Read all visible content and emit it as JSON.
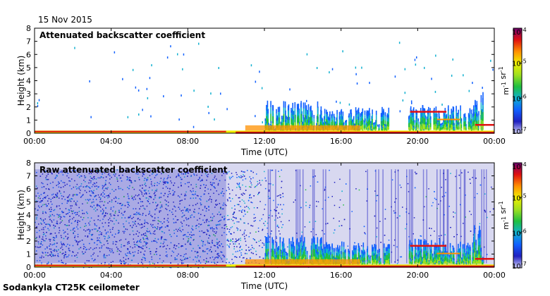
{
  "header": {
    "date": "15 Nov 2015"
  },
  "footer": {
    "instrument": "Sodankyla CT25K ceilometer"
  },
  "colors": {
    "low_fill": "#d8d8f0",
    "scale": [
      "#d0d0f8",
      "#2020c0",
      "#1060ff",
      "#10b0d0",
      "#20c040",
      "#a0e020",
      "#f0f000",
      "#ff9000",
      "#e01010",
      "#700070"
    ]
  },
  "chart_data": [
    {
      "type": "heatmap",
      "title": "Attenuated backscatter coefficient",
      "xlabel": "Time (UTC)",
      "ylabel": "Height (km)",
      "x_ticks": [
        "00:00",
        "04:00",
        "08:00",
        "12:00",
        "16:00",
        "20:00",
        "00:00"
      ],
      "y_ticks": [
        "0",
        "1",
        "2",
        "3",
        "4",
        "5",
        "6",
        "7",
        "8"
      ],
      "xlim_hours": [
        0,
        24
      ],
      "ylim_km": [
        0,
        8
      ],
      "colorbar": {
        "ticks": [
          "10-7",
          "10-6",
          "10-5",
          "10-4"
        ],
        "range_log10": [
          -7,
          -4
        ],
        "label": "m-1 sr-1"
      },
      "features": {
        "surface_layer_top_km": 0.2,
        "cloud_events": [
          {
            "t_start": 12.0,
            "t_end": 15.0,
            "top_km": 2.5
          },
          {
            "t_start": 15.0,
            "t_end": 18.5,
            "top_km": 2.0
          },
          {
            "t_start": 19.5,
            "t_end": 23.0,
            "top_km": 2.2
          },
          {
            "t_start": 22.8,
            "t_end": 23.4,
            "top_km": 3.3
          }
        ]
      }
    },
    {
      "type": "heatmap",
      "title": "Raw attenuated backscatter coefficient",
      "xlabel": "Time (UTC)",
      "ylabel": "Height (km)",
      "x_ticks": [
        "00:00",
        "04:00",
        "08:00",
        "12:00",
        "16:00",
        "20:00",
        "00:00"
      ],
      "y_ticks": [
        "0",
        "1",
        "2",
        "3",
        "4",
        "5",
        "6",
        "7",
        "8"
      ],
      "xlim_hours": [
        0,
        24
      ],
      "ylim_km": [
        0,
        8
      ],
      "colorbar": {
        "ticks": [
          "10-7",
          "10-6",
          "10-5",
          "10-4"
        ],
        "range_log10": [
          -7,
          -4
        ],
        "label": "m-1 sr-1"
      },
      "features": {
        "surface_layer_top_km": 0.2,
        "noise_top_km": 7.5,
        "cloud_events": [
          {
            "t_start": 12.0,
            "t_end": 15.0,
            "top_km": 2.5
          },
          {
            "t_start": 15.0,
            "t_end": 18.5,
            "top_km": 2.0
          },
          {
            "t_start": 19.5,
            "t_end": 23.0,
            "top_km": 2.2
          },
          {
            "t_start": 22.8,
            "t_end": 23.4,
            "top_km": 3.3
          }
        ]
      }
    }
  ]
}
